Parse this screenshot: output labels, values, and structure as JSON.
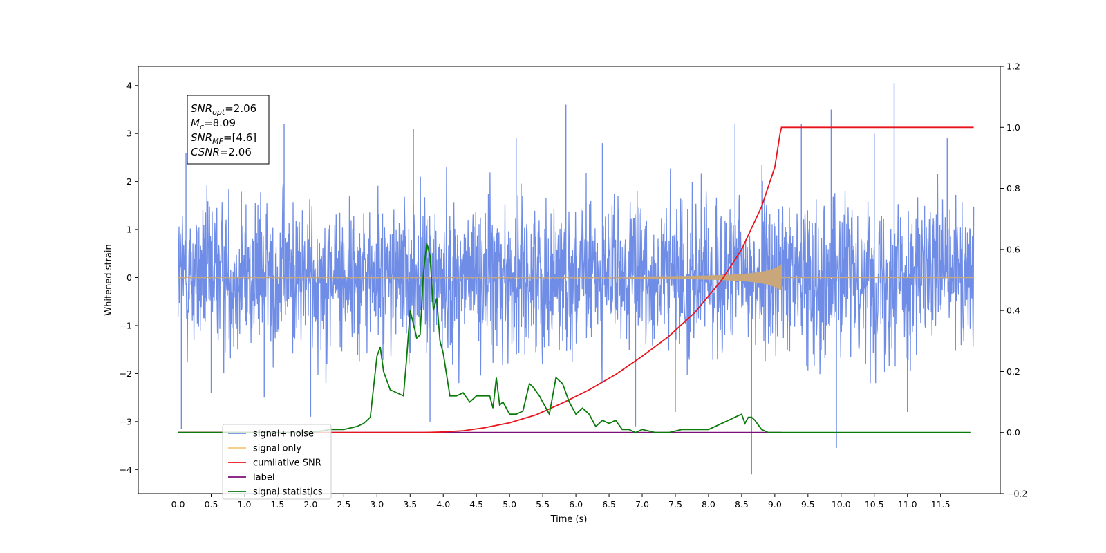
{
  "chart_data": {
    "type": "line",
    "title": "",
    "xlabel": "Time (s)",
    "ylabel": "Whitened strain",
    "ylabel_right": "",
    "xlim": [
      -0.6,
      12.4
    ],
    "ylim": [
      -4.5,
      4.4
    ],
    "ylim_right": [
      -0.2,
      1.2
    ],
    "grid": false,
    "legend_position": "bottom-left",
    "x_ticks": [
      0.0,
      0.5,
      1.0,
      1.5,
      2.0,
      2.5,
      3.0,
      3.5,
      4.0,
      4.5,
      5.0,
      5.5,
      6.0,
      6.5,
      7.0,
      7.5,
      8.0,
      8.5,
      9.0,
      9.5,
      10.0,
      10.5,
      11.0,
      11.5
    ],
    "x_tick_labels": [
      "0.0",
      "0.5",
      "1.0",
      "1.5",
      "2.0",
      "2.5",
      "3.0",
      "3.5",
      "4.0",
      "4.5",
      "5.0",
      "5.5",
      "6.0",
      "6.5",
      "7.0",
      "7.5",
      "8.0",
      "8.5",
      "9.0",
      "9.5",
      "10.0",
      "10.5",
      "11.0",
      "11.5"
    ],
    "y_ticks": [
      -4,
      -3,
      -2,
      -1,
      0,
      1,
      2,
      3,
      4
    ],
    "y_tick_labels": [
      "−4",
      "−3",
      "−2",
      "−1",
      "0",
      "1",
      "2",
      "3",
      "4"
    ],
    "y_ticks_right": [
      -0.2,
      0.0,
      0.2,
      0.4,
      0.6,
      0.8,
      1.0,
      1.2
    ],
    "y_tick_labels_right": [
      "−0.2",
      "0.0",
      "0.2",
      "0.4",
      "0.6",
      "0.8",
      "1.0",
      "1.2"
    ],
    "annotation": [
      {
        "base": "SNR",
        "sub": "opt",
        "rest": "=2.06"
      },
      {
        "base": "M",
        "sub": "c",
        "rest": "=8.09"
      },
      {
        "base": "SNR",
        "sub": "MF",
        "rest": "=[4.6]"
      },
      {
        "base": "CSNR",
        "sub": "",
        "rest": "=2.06"
      }
    ],
    "series": [
      {
        "name": "signal+ noise",
        "color": "#6f8de6",
        "axis": "left",
        "kind": "noise",
        "x_range": [
          0.0,
          12.0
        ],
        "typical_envelope": [
          -1.8,
          2.2
        ],
        "spikes": [
          [
            0.05,
            -3.15
          ],
          [
            0.12,
            2.6
          ],
          [
            0.5,
            -2.4
          ],
          [
            1.3,
            -2.5
          ],
          [
            1.6,
            3.2
          ],
          [
            2.0,
            -2.9
          ],
          [
            3.55,
            3.1
          ],
          [
            3.8,
            -3.0
          ],
          [
            5.1,
            2.9
          ],
          [
            5.85,
            3.6
          ],
          [
            6.4,
            2.8
          ],
          [
            6.9,
            -3.1
          ],
          [
            7.5,
            -2.8
          ],
          [
            8.4,
            3.2
          ],
          [
            8.65,
            -4.1
          ],
          [
            9.4,
            3.2
          ],
          [
            9.85,
            3.5
          ],
          [
            9.93,
            -3.55
          ],
          [
            10.5,
            3.0
          ],
          [
            10.8,
            4.05
          ],
          [
            11.0,
            -2.8
          ],
          [
            11.6,
            2.9
          ]
        ]
      },
      {
        "name": "signal only",
        "color": "#f5c97a",
        "axis": "left",
        "kind": "chirp",
        "x_range": [
          0.0,
          12.0
        ],
        "chirp_end": 9.1,
        "max_amplitude": 0.28
      },
      {
        "name": "cumilative SNR",
        "color": "#e8141c",
        "axis": "right",
        "kind": "curve",
        "x": [
          0.0,
          3.7,
          4.0,
          4.3,
          4.6,
          5.0,
          5.4,
          5.8,
          6.2,
          6.6,
          7.0,
          7.4,
          7.8,
          8.2,
          8.5,
          8.8,
          9.0,
          9.08,
          9.1,
          12.0
        ],
        "values": [
          0.0,
          0.0,
          0.002,
          0.006,
          0.015,
          0.032,
          0.058,
          0.097,
          0.14,
          0.19,
          0.25,
          0.315,
          0.395,
          0.5,
          0.6,
          0.74,
          0.87,
          0.98,
          1.0,
          1.0
        ]
      },
      {
        "name": "label",
        "color": "#7b0f7c",
        "axis": "right",
        "kind": "curve",
        "x": [
          0.0,
          9.1
        ],
        "values": [
          0.0,
          0.0
        ]
      },
      {
        "name": "signal statistics",
        "color": "#0a7a0a",
        "axis": "right",
        "kind": "curve",
        "x": [
          0.0,
          2.0,
          2.3,
          2.5,
          2.7,
          2.8,
          2.9,
          3.0,
          3.05,
          3.1,
          3.2,
          3.4,
          3.45,
          3.5,
          3.6,
          3.65,
          3.7,
          3.75,
          3.8,
          3.85,
          3.9,
          3.95,
          4.0,
          4.1,
          4.2,
          4.3,
          4.4,
          4.5,
          4.6,
          4.7,
          4.75,
          4.8,
          4.85,
          4.9,
          5.0,
          5.1,
          5.2,
          5.3,
          5.35,
          5.45,
          5.5,
          5.6,
          5.7,
          5.8,
          5.9,
          6.0,
          6.1,
          6.2,
          6.3,
          6.4,
          6.5,
          6.6,
          6.7,
          6.8,
          6.9,
          7.0,
          7.2,
          7.4,
          7.6,
          7.7,
          7.8,
          7.9,
          8.0,
          8.1,
          8.2,
          8.3,
          8.4,
          8.5,
          8.55,
          8.6,
          8.65,
          8.7,
          8.8,
          8.9,
          9.0,
          9.1,
          9.3,
          10.0,
          10.4,
          10.5,
          11.0,
          11.95
        ],
        "values": [
          0.0,
          0.0,
          0.01,
          0.01,
          0.02,
          0.03,
          0.05,
          0.25,
          0.28,
          0.2,
          0.14,
          0.12,
          0.25,
          0.4,
          0.31,
          0.32,
          0.52,
          0.62,
          0.58,
          0.4,
          0.44,
          0.3,
          0.26,
          0.12,
          0.12,
          0.13,
          0.1,
          0.12,
          0.12,
          0.12,
          0.08,
          0.18,
          0.09,
          0.1,
          0.06,
          0.06,
          0.07,
          0.16,
          0.15,
          0.12,
          0.1,
          0.06,
          0.18,
          0.16,
          0.1,
          0.06,
          0.08,
          0.06,
          0.02,
          0.04,
          0.03,
          0.04,
          0.01,
          0.01,
          0.0,
          0.01,
          0.0,
          0.0,
          0.01,
          0.01,
          0.01,
          0.01,
          0.01,
          0.02,
          0.03,
          0.04,
          0.05,
          0.06,
          0.03,
          0.05,
          0.05,
          0.04,
          0.01,
          0.0,
          0.0,
          0.0,
          0.0,
          0.0,
          0.0,
          0.0,
          0.0,
          0.0
        ]
      }
    ]
  }
}
